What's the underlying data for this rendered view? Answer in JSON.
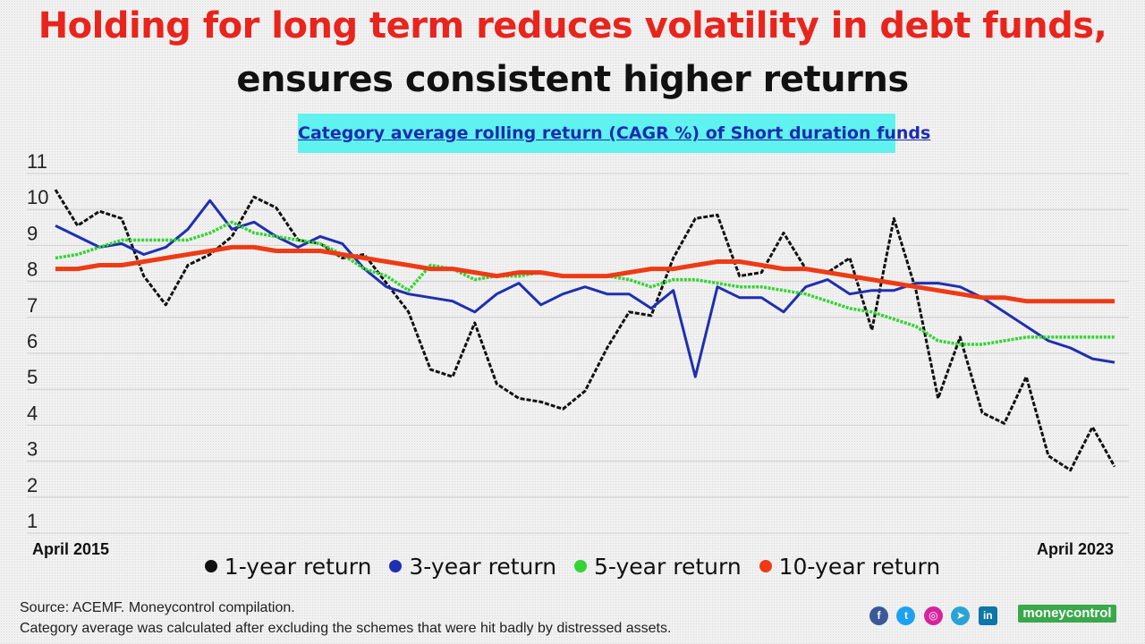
{
  "title_line1": "Holding for long term reduces volatility in debt funds,",
  "title_line2": "ensures consistent higher returns",
  "chart_data": {
    "type": "line",
    "title": "Category average rolling return (CAGR %) of Short duration funds",
    "ylim": [
      1,
      11
    ],
    "y_ticks": [
      "1",
      "2",
      "3",
      "4",
      "5",
      "6",
      "7",
      "8",
      "9",
      "10",
      "11"
    ],
    "x_start_label": "April 2015",
    "x_end_label": "April 2023",
    "x": [
      0,
      2,
      4,
      6,
      8,
      10,
      12,
      14,
      16,
      18,
      20,
      22,
      24,
      26,
      28,
      30,
      32,
      34,
      36,
      38,
      40,
      42,
      44,
      46,
      48,
      50,
      52,
      54,
      56,
      58,
      60,
      62,
      64,
      66,
      68,
      70,
      72,
      74,
      76,
      78,
      80,
      82,
      84,
      86,
      88,
      90,
      92,
      94,
      96
    ],
    "series": [
      {
        "name": "1-year return",
        "color": "#111111",
        "values": [
          10.4,
          9.4,
          9.8,
          9.6,
          8.0,
          7.2,
          8.3,
          8.6,
          9.1,
          10.2,
          9.9,
          9.0,
          8.9,
          8.5,
          8.6,
          7.8,
          7.0,
          5.4,
          5.2,
          6.7,
          5.0,
          4.6,
          4.5,
          4.3,
          4.8,
          6.0,
          7.0,
          6.9,
          8.5,
          9.6,
          9.7,
          8.0,
          8.1,
          9.2,
          8.2,
          8.1,
          8.5,
          6.5,
          9.6,
          7.6,
          4.6,
          6.3,
          4.2,
          3.9,
          5.2,
          3.0,
          2.6,
          3.8,
          2.7
        ]
      },
      {
        "name": "3-year return",
        "color": "#1f2fb0",
        "values": [
          9.4,
          9.1,
          8.8,
          8.9,
          8.6,
          8.8,
          9.3,
          10.1,
          9.3,
          9.5,
          9.1,
          8.8,
          9.1,
          8.9,
          8.2,
          7.7,
          7.5,
          7.4,
          7.3,
          7.0,
          7.5,
          7.8,
          7.2,
          7.5,
          7.7,
          7.5,
          7.5,
          7.1,
          7.6,
          5.2,
          7.7,
          7.4,
          7.4,
          7.0,
          7.7,
          7.9,
          7.5,
          7.6,
          7.6,
          7.8,
          7.8,
          7.7,
          7.4,
          7.0,
          6.6,
          6.2,
          6.0,
          5.7,
          5.6
        ]
      },
      {
        "name": "5-year return",
        "color": "#33d433",
        "values": [
          8.5,
          8.6,
          8.8,
          9.0,
          9.0,
          9.0,
          9.0,
          9.2,
          9.5,
          9.2,
          9.1,
          9.0,
          8.9,
          8.6,
          8.2,
          8.0,
          7.6,
          8.3,
          8.2,
          7.9,
          8.0,
          8.0,
          8.1,
          8.0,
          8.0,
          8.0,
          7.9,
          7.7,
          7.9,
          7.9,
          7.8,
          7.7,
          7.7,
          7.6,
          7.5,
          7.3,
          7.1,
          7.0,
          6.8,
          6.6,
          6.2,
          6.1,
          6.1,
          6.2,
          6.3,
          6.3,
          6.3,
          6.3,
          6.3
        ]
      },
      {
        "name": "10-year return",
        "color": "#ee3b15",
        "values": [
          8.2,
          8.2,
          8.3,
          8.3,
          8.4,
          8.5,
          8.6,
          8.7,
          8.8,
          8.8,
          8.7,
          8.7,
          8.7,
          8.6,
          8.5,
          8.4,
          8.3,
          8.2,
          8.2,
          8.1,
          8.0,
          8.1,
          8.1,
          8.0,
          8.0,
          8.0,
          8.1,
          8.2,
          8.2,
          8.3,
          8.4,
          8.4,
          8.3,
          8.2,
          8.2,
          8.1,
          8.0,
          7.9,
          7.8,
          7.7,
          7.6,
          7.5,
          7.4,
          7.4,
          7.3,
          7.3,
          7.3,
          7.3,
          7.3
        ]
      }
    ]
  },
  "source_line1": "Source: ACEMF. Moneycontrol compilation.",
  "source_line2": "Category average was calculated after excluding the schemes that were hit badly by distressed assets.",
  "social": {
    "facebook": "f",
    "twitter": "t",
    "instagram": "◎",
    "telegram": "➤",
    "linkedin": "in"
  },
  "brand": "moneycontrol"
}
